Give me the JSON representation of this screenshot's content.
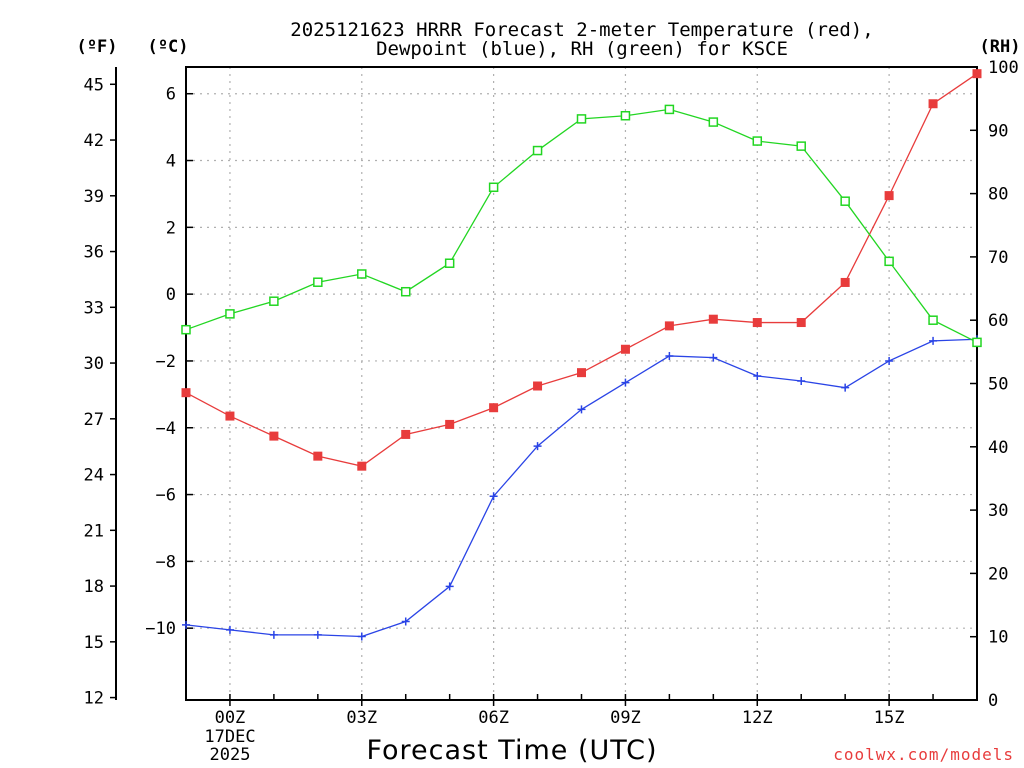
{
  "chart_data": {
    "type": "line",
    "title_line1": "2025121623 HRRR Forecast 2-meter Temperature (red),",
    "title_line2": "Dewpoint (blue), RH (green) for KSCE",
    "xlabel": "Forecast Time (UTC)",
    "credit": "coolwx.com/models",
    "units": {
      "fahrenheit": "(ºF)",
      "celsius": "(ºC)",
      "rh": "(RH)"
    },
    "x": [
      -1,
      0,
      1,
      2,
      3,
      4,
      5,
      6,
      7,
      8,
      9,
      10,
      11,
      12,
      13,
      14,
      15,
      16,
      17
    ],
    "xlim": [
      -1,
      17
    ],
    "x_ticks": [
      {
        "x": 0,
        "label": "00Z"
      },
      {
        "x": 3,
        "label": "03Z"
      },
      {
        "x": 6,
        "label": "06Z"
      },
      {
        "x": 9,
        "label": "09Z"
      },
      {
        "x": 12,
        "label": "12Z"
      },
      {
        "x": 15,
        "label": "15Z"
      }
    ],
    "date_label_line1": "17DEC",
    "date_label_line2": "2025",
    "celsius_axis": {
      "ylim": [
        -12.15,
        6.8
      ],
      "ticks": [
        -10,
        -8,
        -6,
        -4,
        -2,
        0,
        2,
        4,
        6
      ],
      "tick_labels": [
        "−10",
        "−8",
        "−6",
        "−4",
        "−2",
        "0",
        "2",
        "4",
        "6"
      ]
    },
    "fahrenheit_axis": {
      "ylim": [
        11.87,
        45.93
      ],
      "ticks": [
        12,
        15,
        18,
        21,
        24,
        27,
        30,
        33,
        36,
        39,
        42,
        45
      ],
      "tick_labels": [
        "12",
        "15",
        "18",
        "21",
        "24",
        "27",
        "30",
        "33",
        "36",
        "39",
        "42",
        "45"
      ]
    },
    "rh_axis": {
      "ylim": [
        0,
        100
      ],
      "ticks": [
        0,
        10,
        20,
        30,
        40,
        50,
        60,
        70,
        80,
        90,
        100
      ],
      "tick_labels": [
        "0",
        "10",
        "20",
        "30",
        "40",
        "50",
        "60",
        "70",
        "80",
        "90",
        "100"
      ]
    },
    "grid": true,
    "series": [
      {
        "name": "2-meter Temperature",
        "axis": "celsius",
        "color": "#e83c3c",
        "marker": "filled-square",
        "values": [
          -2.95,
          -3.65,
          -4.25,
          -4.85,
          -5.15,
          -4.2,
          -3.9,
          -3.4,
          -2.75,
          -2.35,
          -1.65,
          -0.95,
          -0.75,
          -0.85,
          -0.85,
          0.35,
          2.95,
          5.7,
          6.6
        ]
      },
      {
        "name": "Dewpoint",
        "axis": "celsius",
        "color": "#2a44e6",
        "marker": "plus",
        "values": [
          -9.9,
          -10.05,
          -10.2,
          -10.2,
          -10.25,
          -9.8,
          -8.75,
          -6.05,
          -4.55,
          -3.45,
          -2.65,
          -1.85,
          -1.9,
          -2.45,
          -2.6,
          -2.8,
          -2.0,
          -1.4,
          -1.35
        ]
      },
      {
        "name": "RH",
        "axis": "rh",
        "color": "#22d622",
        "marker": "open-square",
        "values": [
          58.5,
          61,
          63,
          66,
          67.3,
          64.5,
          69,
          81,
          86.8,
          91.8,
          92.3,
          93.3,
          91.3,
          88.3,
          87.5,
          78.8,
          69.3,
          60,
          56.5
        ]
      }
    ]
  }
}
